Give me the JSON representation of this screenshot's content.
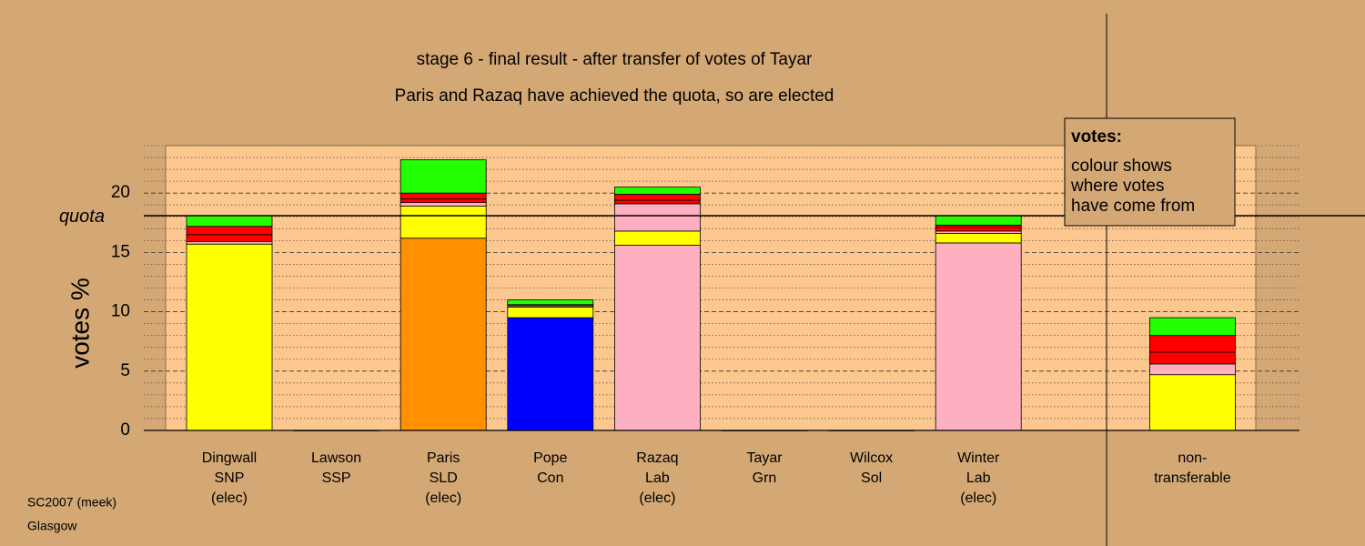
{
  "chart_data": {
    "type": "bar",
    "stacked": true,
    "title": "stage 6 - final result - after transfer of votes of Tayar",
    "subtitle": "Paris and Razaq have achieved the quota, so are elected",
    "y_label": "votes %",
    "categories": [
      [
        "Dingwall",
        "SNP",
        "(elec)"
      ],
      [
        "Lawson",
        "SSP"
      ],
      [
        "Paris",
        "SLD",
        "(elec)"
      ],
      [
        "Pope",
        "Con"
      ],
      [
        "Razaq",
        "Lab",
        "(elec)"
      ],
      [
        "Tayar",
        "Grn"
      ],
      [
        "Wilcox",
        "Sol"
      ],
      [
        "Winter",
        "Lab",
        "(elec)"
      ],
      null,
      [
        "non-",
        "transferable"
      ]
    ],
    "series": [
      {
        "colors": [
          "#ffff00",
          "#ff0000",
          "#ff9000",
          "#0000ff",
          "#ffb0c0",
          "#22ff00",
          "#ff0000",
          "#ffb0c0",
          null,
          "#ffff00"
        ],
        "values": [
          15.7,
          0,
          16.2,
          9.5,
          15.6,
          0,
          0,
          15.8,
          null,
          4.7
        ]
      },
      {
        "color": "#ffff00",
        "values": [
          0,
          0,
          2.7,
          0.9,
          1.2,
          0,
          0,
          0.8,
          null,
          0
        ]
      },
      {
        "color": "#ffb0c0",
        "values": [
          0.2,
          0,
          0.3,
          0.1,
          2.3,
          0,
          0,
          0.2,
          null,
          0.9
        ]
      },
      {
        "color": "#ff0000",
        "values": [
          0.6,
          0,
          0.3,
          0,
          0.3,
          0,
          0,
          0.3,
          null,
          1.0
        ]
      },
      {
        "color": "#ff0000",
        "values": [
          0.7,
          0,
          0.5,
          0.1,
          0.5,
          0,
          0,
          0.2,
          null,
          1.4
        ]
      },
      {
        "color": "#22ff00",
        "values": [
          0.9,
          0,
          2.8,
          0.4,
          0.6,
          0,
          0,
          0.8,
          null,
          1.5
        ]
      }
    ],
    "quota": {
      "label": "quota",
      "value": 18.1
    },
    "ylim": [
      0,
      24
    ],
    "yticks": [
      0,
      5,
      10,
      15,
      20
    ],
    "minor_yticks": [
      1,
      2,
      3,
      4,
      6,
      7,
      8,
      9,
      11,
      12,
      13,
      14,
      16,
      17,
      18,
      19,
      21,
      22,
      23,
      24
    ],
    "legend": {
      "title": "votes:",
      "lines": [
        "colour shows",
        "where votes",
        "have come from"
      ]
    },
    "footer": [
      "SC2007 (meek)",
      "Glasgow"
    ]
  }
}
